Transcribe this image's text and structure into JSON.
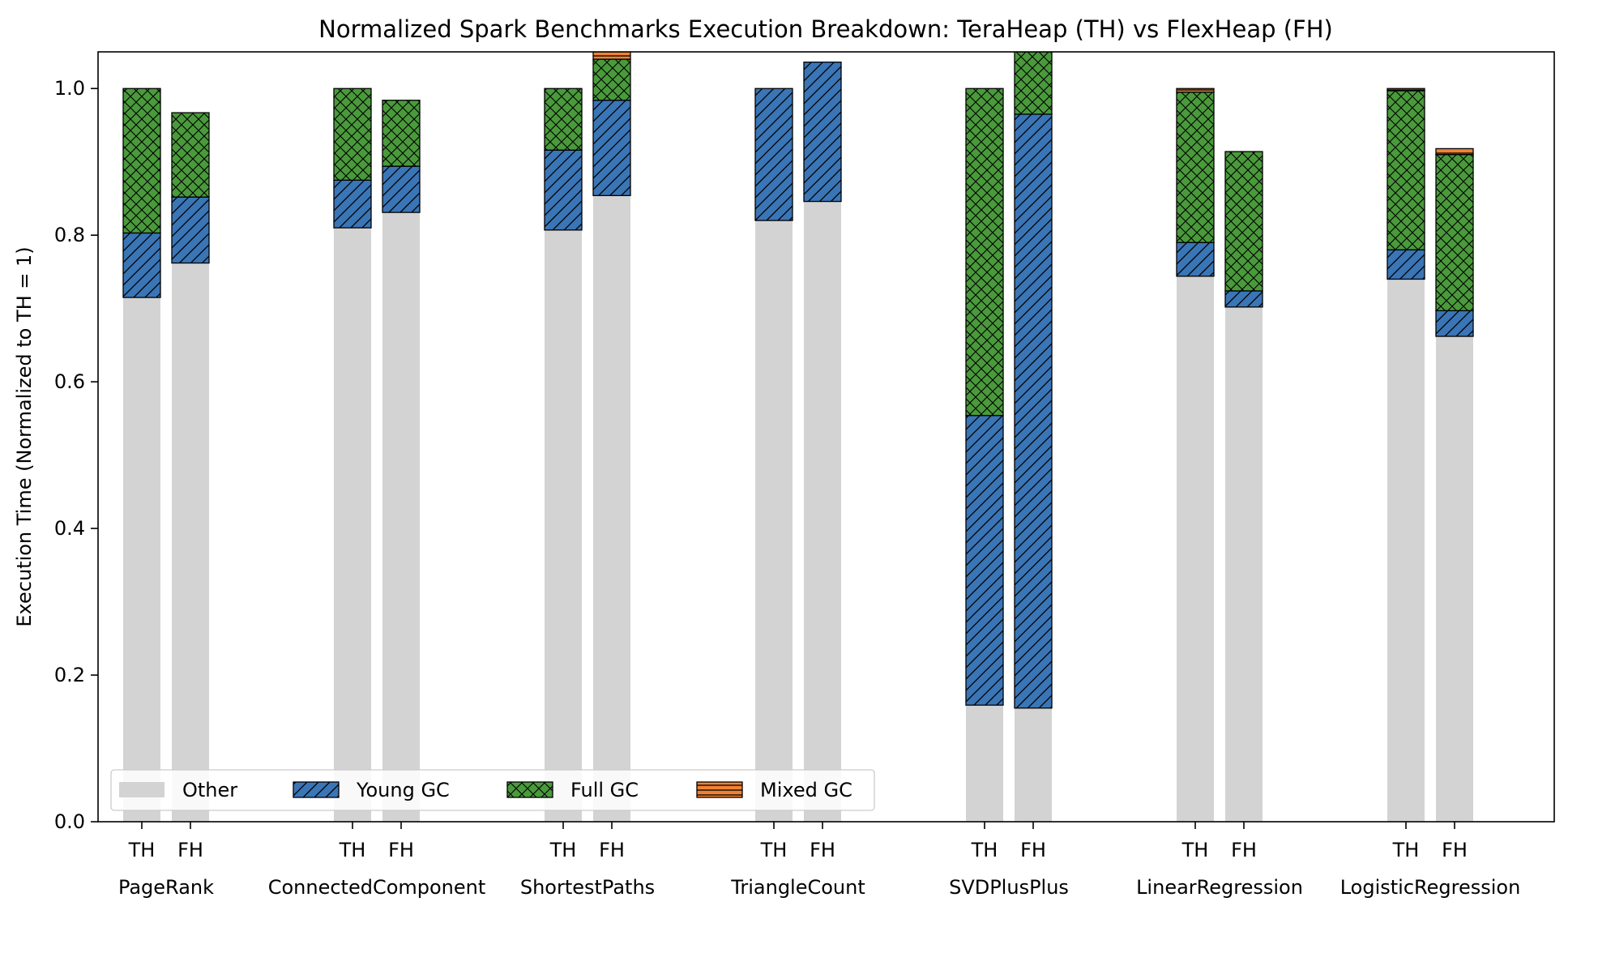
{
  "chart_data": {
    "type": "bar",
    "stacked": true,
    "title": "Normalized Spark Benchmarks Execution Breakdown: TeraHeap (TH) vs FlexHeap (FH)",
    "xlabel": "",
    "ylabel": "Execution Time (Normalized to TH = 1)",
    "ylim": [
      0,
      1.05
    ],
    "yticks": [
      "0.0",
      "0.2",
      "0.4",
      "0.6",
      "0.8",
      "1.0"
    ],
    "grid": false,
    "legend_position": "lower-left",
    "categories": [
      "PageRank",
      "ConnectedComponent",
      "ShortestPaths",
      "TriangleCount",
      "SVDPlusPlus",
      "LinearRegression",
      "LogisticRegression"
    ],
    "configs": [
      "TH",
      "FH"
    ],
    "segments": [
      {
        "name": "Other",
        "color": "#d3d3d3",
        "pattern": "none"
      },
      {
        "name": "Young GC",
        "color": "#3a75b6",
        "pattern": "diagonal"
      },
      {
        "name": "Full GC",
        "color": "#4a9a3c",
        "pattern": "crosshatch"
      },
      {
        "name": "Mixed GC",
        "color": "#f08232",
        "pattern": "horizontal"
      }
    ],
    "series": [
      {
        "name": "Other",
        "TH": [
          0.715,
          0.81,
          0.807,
          0.82,
          0.159,
          0.744,
          0.74
        ],
        "FH": [
          0.762,
          0.831,
          0.854,
          0.846,
          0.155,
          0.702,
          0.662
        ]
      },
      {
        "name": "Young GC",
        "TH": [
          0.088,
          0.065,
          0.109,
          0.18,
          0.395,
          0.046,
          0.04
        ],
        "FH": [
          0.09,
          0.063,
          0.13,
          0.19,
          0.81,
          0.022,
          0.035
        ]
      },
      {
        "name": "Full GC",
        "TH": [
          0.197,
          0.125,
          0.084,
          0.0,
          0.446,
          0.205,
          0.217
        ],
        "FH": [
          0.115,
          0.09,
          0.056,
          0.0,
          0.09,
          0.19,
          0.213
        ]
      },
      {
        "name": "Mixed GC",
        "TH": [
          0.0,
          0.0,
          0.0,
          0.0,
          0.0,
          0.005,
          0.003
        ],
        "FH": [
          0.0,
          0.0,
          0.015,
          0.0,
          0.0,
          0.0,
          0.008
        ]
      }
    ]
  }
}
